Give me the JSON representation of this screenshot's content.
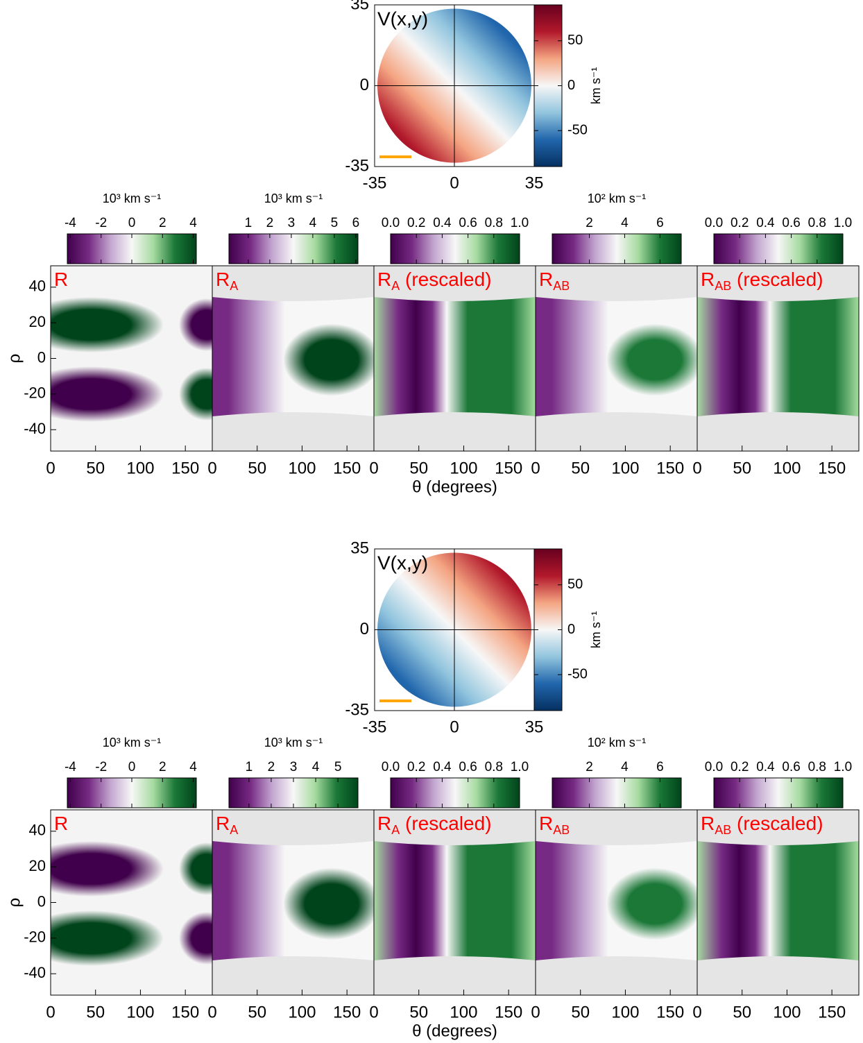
{
  "chart_data": [
    {
      "type": "velocity_map",
      "title": "V(x,y)",
      "xlim": [
        -35,
        35
      ],
      "ylim": [
        -35,
        35
      ],
      "xticks": [
        -35,
        0,
        35
      ],
      "yticks": [
        -35,
        0,
        35
      ],
      "colorbar": {
        "label": "km s⁻¹",
        "lim": [
          -90,
          90
        ],
        "ticks": [
          -50,
          0,
          50
        ],
        "colormap": "RdBu_r"
      },
      "disk_colors": [
        "#67001f",
        "#b2182b",
        "#f4a582",
        "#f7f7f7",
        "#92c5de",
        "#2166ac",
        "#1c5a99"
      ],
      "scale_bar_color": "#ffa500"
    },
    {
      "type": "heatmap",
      "title": "R",
      "ylabel": "ρ",
      "xlim": [
        0,
        180
      ],
      "ylim": [
        -52,
        52
      ],
      "xticks": [
        0,
        50,
        100,
        150
      ],
      "yticks": [
        -40,
        -20,
        0,
        20,
        40
      ],
      "background": "#f4f4f4",
      "colorbar": {
        "label": "10³ km s⁻¹",
        "lim": [
          -4.2,
          4.2
        ],
        "ticks": [
          -4,
          -2,
          0,
          2,
          4
        ],
        "colormap": "PRGn"
      }
    },
    {
      "type": "heatmap",
      "title": "R",
      "title_sub": "A",
      "xlim": [
        0,
        180
      ],
      "ylim": [
        -52,
        52
      ],
      "xticks": [
        0,
        50,
        100,
        150
      ],
      "background": "#e5e5e5",
      "colorbar": {
        "label": "10³ km s⁻¹",
        "lim": [
          0.1,
          6.1
        ],
        "ticks": [
          1,
          2,
          3,
          4,
          5,
          6
        ],
        "colormap": "PRGn"
      }
    },
    {
      "type": "heatmap",
      "title": "R",
      "title_sub": "A",
      "title_suffix": " (rescaled)",
      "xlabel": "θ (degrees)",
      "xlim": [
        0,
        180
      ],
      "ylim": [
        -52,
        52
      ],
      "xticks": [
        0,
        50,
        100,
        150
      ],
      "background": "#e5e5e5",
      "colorbar": {
        "lim": [
          0,
          1
        ],
        "ticks": [
          {
            "value": 0,
            "label": "0.0"
          },
          0.2,
          0.4,
          0.6,
          0.8,
          {
            "value": 1,
            "label": "1.0"
          }
        ],
        "colormap": "PRGn"
      }
    },
    {
      "type": "heatmap",
      "title": "R",
      "title_sub": "AB",
      "xlim": [
        0,
        180
      ],
      "ylim": [
        -52,
        52
      ],
      "xticks": [
        0,
        50,
        100,
        150
      ],
      "background": "#e5e5e5",
      "colorbar": {
        "label": "10² km s⁻¹",
        "lim": [
          -0.1,
          7.2
        ],
        "ticks": [
          2,
          4,
          6
        ],
        "colormap": "PRGn"
      }
    },
    {
      "type": "heatmap",
      "title": "R",
      "title_sub": "AB",
      "title_suffix": " (rescaled)",
      "xlim": [
        0,
        180
      ],
      "ylim": [
        -52,
        52
      ],
      "xticks": [
        0,
        50,
        100,
        150
      ],
      "background": "#e5e5e5",
      "colorbar": {
        "lim": [
          0,
          1
        ],
        "ticks": [
          {
            "value": 0,
            "label": "0.0"
          },
          0.2,
          0.4,
          0.6,
          0.8,
          {
            "value": 1,
            "label": "1.0"
          }
        ],
        "colormap": "PRGn"
      }
    },
    {
      "type": "velocity_map",
      "title": "V(x,y)",
      "xlim": [
        -35,
        35
      ],
      "ylim": [
        -35,
        35
      ],
      "xticks": [
        -35,
        0,
        35
      ],
      "yticks": [
        -35,
        0,
        35
      ],
      "colorbar": {
        "label": "km s⁻¹",
        "lim": [
          -90,
          90
        ],
        "ticks": [
          -50,
          0,
          50
        ],
        "colormap": "RdBu_r"
      },
      "disk_colors": [
        "#1c5a99",
        "#2166ac",
        "#92c5de",
        "#f7f7f7",
        "#f4a582",
        "#b2182b",
        "#67001f"
      ],
      "scale_bar_color": "#ffa500"
    },
    {
      "type": "heatmap",
      "title": "R",
      "ylabel": "ρ",
      "xlim": [
        0,
        180
      ],
      "ylim": [
        -52,
        52
      ],
      "xticks": [
        0,
        50,
        100,
        150
      ],
      "yticks": [
        -40,
        -20,
        0,
        20,
        40
      ],
      "background": "#f4f4f4",
      "colorbar": {
        "label": "10³ km s⁻¹",
        "lim": [
          -4.2,
          4.2
        ],
        "ticks": [
          -4,
          -2,
          0,
          2,
          4
        ],
        "colormap": "PRGn"
      }
    },
    {
      "type": "heatmap",
      "title": "R",
      "title_sub": "A",
      "xlim": [
        0,
        180
      ],
      "ylim": [
        -52,
        52
      ],
      "xticks": [
        0,
        50,
        100,
        150
      ],
      "background": "#e5e5e5",
      "colorbar": {
        "label": "10³ km s⁻¹",
        "lim": [
          0.1,
          5.9
        ],
        "ticks": [
          1,
          2,
          3,
          4,
          5
        ],
        "colormap": "PRGn"
      }
    },
    {
      "type": "heatmap",
      "title": "R",
      "title_sub": "A",
      "title_suffix": " (rescaled)",
      "xlabel": "θ (degrees)",
      "xlim": [
        0,
        180
      ],
      "ylim": [
        -52,
        52
      ],
      "xticks": [
        0,
        50,
        100,
        150
      ],
      "background": "#e5e5e5",
      "colorbar": {
        "lim": [
          0,
          1
        ],
        "ticks": [
          {
            "value": 0,
            "label": "0.0"
          },
          0.2,
          0.4,
          0.6,
          0.8,
          {
            "value": 1,
            "label": "1.0"
          }
        ],
        "colormap": "PRGn"
      }
    },
    {
      "type": "heatmap",
      "title": "R",
      "title_sub": "AB",
      "xlim": [
        0,
        180
      ],
      "ylim": [
        -52,
        52
      ],
      "xticks": [
        0,
        50,
        100,
        150
      ],
      "background": "#e5e5e5",
      "colorbar": {
        "label": "10² km s⁻¹",
        "lim": [
          -0.1,
          7.2
        ],
        "ticks": [
          2,
          4,
          6
        ],
        "colormap": "PRGn"
      }
    },
    {
      "type": "heatmap",
      "title": "R",
      "title_sub": "AB",
      "title_suffix": " (rescaled)",
      "xlim": [
        0,
        180
      ],
      "ylim": [
        -52,
        52
      ],
      "xticks": [
        0,
        50,
        100,
        150
      ],
      "background": "#e5e5e5",
      "colorbar": {
        "lim": [
          0,
          1
        ],
        "ticks": [
          {
            "value": 0,
            "label": "0.0"
          },
          0.2,
          0.4,
          0.6,
          0.8,
          {
            "value": 1,
            "label": "1.0"
          }
        ],
        "colormap": "PRGn"
      }
    }
  ]
}
